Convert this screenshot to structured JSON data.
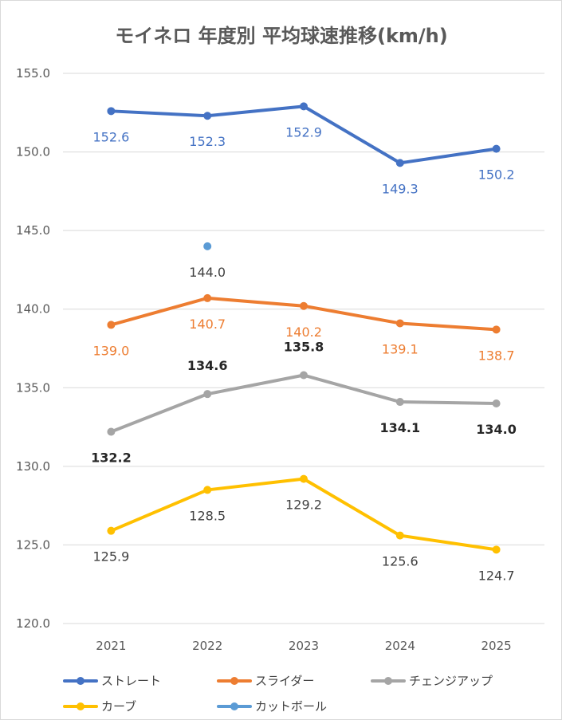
{
  "chart_data": {
    "type": "line",
    "title": "モイネロ 年度別 平均球速推移(km/h)",
    "xlabel": "",
    "ylabel": "",
    "categories": [
      "2021",
      "2022",
      "2023",
      "2024",
      "2025"
    ],
    "ylim": [
      120,
      155
    ],
    "yticks": [
      "120.0",
      "125.0",
      "130.0",
      "135.0",
      "140.0",
      "145.0",
      "150.0",
      "155.0"
    ],
    "grid": true,
    "legend_position": "bottom",
    "series": [
      {
        "name": "ストレート",
        "color": "#4472C4",
        "values": [
          152.6,
          152.3,
          152.9,
          149.3,
          150.2
        ],
        "labels": [
          "152.6",
          "152.3",
          "152.9",
          "149.3",
          "150.2"
        ],
        "label_color": "#4472C4",
        "label_bold": false
      },
      {
        "name": "スライダー",
        "color": "#ED7D31",
        "values": [
          139.0,
          140.7,
          140.2,
          139.1,
          138.7
        ],
        "labels": [
          "139.0",
          "140.7",
          "140.2",
          "139.1",
          "138.7"
        ],
        "label_color": "#ED7D31",
        "label_bold": false
      },
      {
        "name": "チェンジアップ",
        "color": "#A5A5A5",
        "values": [
          132.2,
          134.6,
          135.8,
          134.1,
          134.0
        ],
        "labels": [
          "132.2",
          "134.6",
          "135.8",
          "134.1",
          "134.0"
        ],
        "label_color": "#262626",
        "label_bold": true
      },
      {
        "name": "カーブ",
        "color": "#FFC000",
        "values": [
          125.9,
          128.5,
          129.2,
          125.6,
          124.7
        ],
        "labels": [
          "125.9",
          "128.5",
          "129.2",
          "125.6",
          "124.7"
        ],
        "label_color": "#404040",
        "label_bold": false
      },
      {
        "name": "カットボール",
        "color": "#5B9BD5",
        "values": [
          null,
          144.0,
          null,
          null,
          null
        ],
        "labels": [
          null,
          "144.0",
          null,
          null,
          null
        ],
        "label_color": "#404040",
        "label_bold": false
      }
    ]
  }
}
